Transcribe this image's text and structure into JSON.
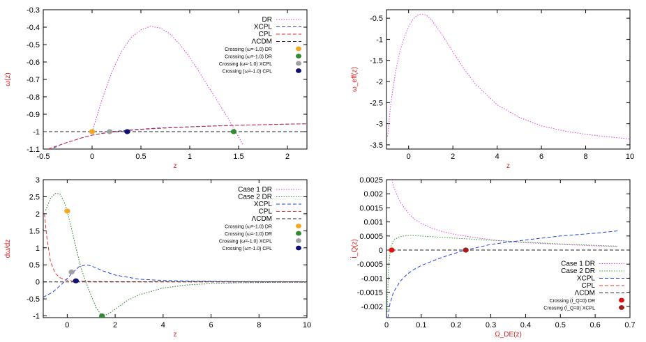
{
  "colors": {
    "DR": "#e040e0",
    "Case 1 DR": "#e040e0",
    "Case 2 DR": "#2ca02c",
    "XCPL": "#2040e0",
    "CPL": "#e03030",
    "ΛCDM": "#202020",
    "orange": "#f5a623",
    "green": "#2e8b2e",
    "gray": "#a0a0a0",
    "navy": "#101070",
    "red": "#e01010",
    "darkred": "#a02020"
  },
  "chart_data": [
    {
      "type": "line",
      "xlabel": "z",
      "ylabel": "ω(z)",
      "xlim": [
        -0.5,
        2.2
      ],
      "ylim": [
        -1.1,
        -0.3
      ],
      "xticks": [
        -0.5,
        0,
        0.5,
        1,
        1.5,
        2
      ],
      "yticks": [
        -1.1,
        -1,
        -0.9,
        -0.8,
        -0.7,
        -0.6,
        -0.5,
        -0.4,
        -0.3
      ],
      "xtick_labels": [
        "-0.5",
        "0",
        "0.5",
        "1",
        "1.5",
        "2"
      ],
      "ytick_labels": [
        "-1.1",
        "-1",
        "-0.9",
        "-0.8",
        "-0.7",
        "-0.6",
        "-0.5",
        "-0.4",
        "-0.3"
      ],
      "legend_position": "top-right",
      "series": [
        {
          "name": "DR",
          "dash": "dot",
          "x": [
            0.0,
            0.1,
            0.2,
            0.3,
            0.4,
            0.5,
            0.6,
            0.7,
            0.8,
            0.9,
            1.0,
            1.1,
            1.2,
            1.3,
            1.4,
            1.5,
            1.55
          ],
          "values": [
            -1.0,
            -0.82,
            -0.66,
            -0.54,
            -0.46,
            -0.415,
            -0.395,
            -0.405,
            -0.44,
            -0.5,
            -0.575,
            -0.66,
            -0.75,
            -0.84,
            -0.93,
            -1.03,
            -1.08
          ]
        },
        {
          "name": "XCPL",
          "dash": "dash",
          "x": [
            -0.5,
            -0.3,
            -0.1,
            0.0,
            0.2,
            0.4,
            0.6,
            0.8,
            1.0,
            1.3,
            1.6,
            1.9,
            2.2
          ],
          "values": [
            -1.12,
            -1.07,
            -1.035,
            -1.02,
            -1.0,
            -0.99,
            -0.982,
            -0.976,
            -0.972,
            -0.966,
            -0.962,
            -0.958,
            -0.955
          ]
        },
        {
          "name": "CPL",
          "dash": "dash",
          "x": [
            -0.5,
            -0.3,
            -0.1,
            0.0,
            0.2,
            0.4,
            0.6,
            0.8,
            1.0,
            1.3,
            1.6,
            1.9,
            2.2
          ],
          "values": [
            -1.11,
            -1.07,
            -1.035,
            -1.02,
            -1.003,
            -0.992,
            -0.984,
            -0.978,
            -0.973,
            -0.967,
            -0.962,
            -0.958,
            -0.955
          ]
        },
        {
          "name": "ΛCDM",
          "dash": "dash",
          "x": [
            -0.5,
            2.2
          ],
          "values": [
            -1.0,
            -1.0
          ]
        }
      ],
      "points": [
        {
          "name": "Crossing (ω=-1.0) DR",
          "x": 0.0,
          "y": -1.0,
          "color": "orange"
        },
        {
          "name": "Crossing (ω=-1.0) DR",
          "x": 1.45,
          "y": -1.0,
          "color": "green"
        },
        {
          "name": "Crossing (ω=-1.0) XCPL",
          "x": 0.18,
          "y": -1.0,
          "color": "gray"
        },
        {
          "name": "Crossing (ω=-1.0) CPL",
          "x": 0.36,
          "y": -1.0,
          "color": "navy"
        }
      ]
    },
    {
      "type": "line",
      "xlabel": "z",
      "ylabel": "ω_eff(z)",
      "xlim": [
        -1,
        10
      ],
      "ylim": [
        -3.6,
        -0.3
      ],
      "xticks": [
        0,
        2,
        4,
        6,
        8,
        10
      ],
      "yticks": [
        -3.5,
        -3,
        -2.5,
        -2,
        -1.5,
        -1,
        -0.5
      ],
      "xtick_labels": [
        "0",
        "2",
        "4",
        "6",
        "8",
        "10"
      ],
      "ytick_labels": [
        "-3.5",
        "-3",
        "-2.5",
        "-2",
        "-1.5",
        "-1",
        "-0.5"
      ],
      "series": [
        {
          "name": "",
          "dash": "dot",
          "x": [
            -0.95,
            -0.8,
            -0.6,
            -0.4,
            -0.2,
            0.0,
            0.2,
            0.4,
            0.6,
            0.8,
            1.0,
            1.5,
            2.0,
            2.5,
            3.0,
            4.0,
            5.0,
            6.0,
            7.0,
            8.0,
            9.0,
            10.0
          ],
          "values": [
            -3.3,
            -2.5,
            -1.8,
            -1.3,
            -0.95,
            -0.7,
            -0.52,
            -0.43,
            -0.4,
            -0.43,
            -0.52,
            -0.88,
            -1.3,
            -1.7,
            -2.05,
            -2.55,
            -2.85,
            -3.05,
            -3.17,
            -3.25,
            -3.31,
            -3.36
          ]
        }
      ]
    },
    {
      "type": "line",
      "xlabel": "z",
      "ylabel": "dω/dz",
      "xlim": [
        -1,
        10
      ],
      "ylim": [
        -1.05,
        3
      ],
      "xticks": [
        0,
        2,
        4,
        6,
        8,
        10
      ],
      "yticks": [
        -1,
        -0.5,
        0,
        0.5,
        1,
        1.5,
        2,
        2.5,
        3
      ],
      "xtick_labels": [
        "0",
        "2",
        "4",
        "6",
        "8",
        "10"
      ],
      "ytick_labels": [
        "-1",
        "-0.5",
        "0",
        "0.5",
        "1",
        "1.5",
        "2",
        "2.5",
        "3"
      ],
      "legend_position": "top-right",
      "series": [
        {
          "name": "Case 1 DR",
          "dash": "dot",
          "x": [
            -0.9,
            -0.7,
            -0.5,
            -0.3,
            -0.1,
            0.0,
            0.2,
            0.4,
            0.6,
            0.8,
            1.0,
            1.2,
            1.45,
            1.7,
            2.0,
            2.5,
            3.0,
            4.0,
            5.0,
            6.0,
            7.0,
            8.0,
            10.0
          ],
          "values": [
            2.1,
            2.45,
            2.6,
            2.58,
            2.3,
            2.08,
            1.5,
            0.9,
            0.35,
            -0.05,
            -0.4,
            -0.75,
            -1.0,
            -0.95,
            -0.8,
            -0.55,
            -0.38,
            -0.18,
            -0.09,
            -0.05,
            -0.03,
            -0.02,
            -0.01
          ]
        },
        {
          "name": "Case 2 DR",
          "dash": "dot",
          "x": [
            -0.9,
            -0.7,
            -0.5,
            -0.3,
            -0.1,
            0.0,
            0.2,
            0.4,
            0.6,
            0.8,
            1.0,
            1.2,
            1.45,
            1.7,
            2.0,
            2.5,
            3.0,
            4.0,
            5.0,
            6.0,
            7.0,
            8.0,
            10.0
          ],
          "values": [
            2.1,
            2.45,
            2.6,
            2.58,
            2.3,
            2.08,
            1.5,
            0.9,
            0.35,
            -0.05,
            -0.4,
            -0.75,
            -1.0,
            -0.95,
            -0.8,
            -0.55,
            -0.38,
            -0.18,
            -0.09,
            -0.05,
            -0.03,
            -0.02,
            -0.01
          ]
        },
        {
          "name": "XCPL",
          "dash": "dash",
          "x": [
            -1.0,
            -0.6,
            -0.2,
            0.2,
            0.5,
            0.8,
            1.0,
            1.5,
            2.0,
            3.0,
            4.0,
            6.0,
            8.0,
            10.0
          ],
          "values": [
            -0.45,
            -0.3,
            -0.05,
            0.25,
            0.45,
            0.5,
            0.47,
            0.32,
            0.2,
            0.08,
            0.04,
            0.015,
            0.006,
            0.003
          ]
        },
        {
          "name": "CPL",
          "dash": "dash",
          "x": [
            -0.95,
            -0.85,
            -0.7,
            -0.5,
            -0.3,
            -0.1,
            0.2,
            0.5,
            1.0,
            2.0,
            10.0
          ],
          "values": [
            2.0,
            1.3,
            0.6,
            0.25,
            0.12,
            0.06,
            0.03,
            0.02,
            0.01,
            0.005,
            0.0
          ]
        },
        {
          "name": "ΛCDM",
          "dash": "dash",
          "x": [
            -1.0,
            10.0
          ],
          "values": [
            0.0,
            0.0
          ]
        }
      ],
      "points": [
        {
          "name": "Crossing (ω=-1.0) DR",
          "x": 0.0,
          "y": 2.08,
          "color": "orange"
        },
        {
          "name": "Crossing (ω=-1.0) DR",
          "x": 1.45,
          "y": -1.0,
          "color": "green"
        },
        {
          "name": "Crossing (ω=-1.0) XCPL",
          "x": 0.18,
          "y": 0.29,
          "color": "gray"
        },
        {
          "name": "Crossing (ω=-1.0) CPL",
          "x": 0.36,
          "y": 0.03,
          "color": "navy"
        }
      ]
    },
    {
      "type": "line",
      "xlabel": "Ω_DE(z)",
      "ylabel": "İ_Q(z)",
      "xlim": [
        0,
        0.7
      ],
      "ylim": [
        -0.0024,
        0.0025
      ],
      "xticks": [
        0,
        0.1,
        0.2,
        0.3,
        0.4,
        0.5,
        0.6,
        0.7
      ],
      "yticks": [
        -0.002,
        -0.0015,
        -0.001,
        -0.0005,
        0,
        0.0005,
        0.001,
        0.0015,
        0.002,
        0.0025
      ],
      "xtick_labels": [
        "0",
        "0.1",
        "0.2",
        "0.3",
        "0.4",
        "0.5",
        "0.6",
        "0.7"
      ],
      "ytick_labels": [
        "-0.002",
        "-0.0015",
        "-0.001",
        "-0.0005",
        "0",
        "0.0005",
        "0.001",
        "0.0015",
        "0.002",
        "0.0025"
      ],
      "legend_position": "bottom-right",
      "series": [
        {
          "name": "Case 1 DR",
          "dash": "dot",
          "x": [
            0.015,
            0.025,
            0.04,
            0.06,
            0.08,
            0.1,
            0.13,
            0.16,
            0.2,
            0.25,
            0.3,
            0.35,
            0.4,
            0.5,
            0.6,
            0.665
          ],
          "values": [
            0.0025,
            0.0021,
            0.0017,
            0.00135,
            0.0011,
            0.00095,
            0.00078,
            0.00066,
            0.00055,
            0.00045,
            0.00037,
            0.00031,
            0.00026,
            0.0002,
            0.00015,
            0.00013
          ]
        },
        {
          "name": "Case 2 DR",
          "dash": "dot",
          "x": [
            0.002,
            0.006,
            0.012,
            0.02,
            0.035,
            0.05,
            0.07,
            0.1,
            0.15,
            0.2,
            0.3,
            0.4,
            0.5,
            0.6,
            0.665
          ],
          "values": [
            -0.0022,
            -0.0006,
            0.0001,
            0.00035,
            0.00046,
            0.0005,
            0.00052,
            0.0005,
            0.00046,
            0.00042,
            0.00035,
            0.00028,
            0.00022,
            0.00017,
            0.00014
          ]
        },
        {
          "name": "XCPL",
          "dash": "dash",
          "x": [
            0.004,
            0.01,
            0.02,
            0.04,
            0.06,
            0.08,
            0.1,
            0.13,
            0.16,
            0.2,
            0.228,
            0.3,
            0.4,
            0.5,
            0.6,
            0.665
          ],
          "values": [
            -0.0024,
            -0.0019,
            -0.0015,
            -0.0011,
            -0.00085,
            -0.00068,
            -0.00055,
            -0.0004,
            -0.00026,
            -0.0001,
            0.0,
            0.0002,
            0.00036,
            0.0005,
            0.0006,
            0.00068
          ]
        },
        {
          "name": "CPL",
          "dash": "dash",
          "x": [
            0.0,
            0.7
          ],
          "values": [
            0.0,
            0.0
          ]
        },
        {
          "name": "ΛCDM",
          "dash": "dash",
          "x": [
            0.0,
            0.7
          ],
          "values": [
            0.0,
            0.0
          ]
        }
      ],
      "points": [
        {
          "name": "Crossing (İ_Q=0) DR",
          "x": 0.015,
          "y": 0.0,
          "color": "red"
        },
        {
          "name": "Crossing (İ_Q=0) XCPL",
          "x": 0.228,
          "y": 0.0,
          "color": "darkred"
        }
      ]
    }
  ]
}
